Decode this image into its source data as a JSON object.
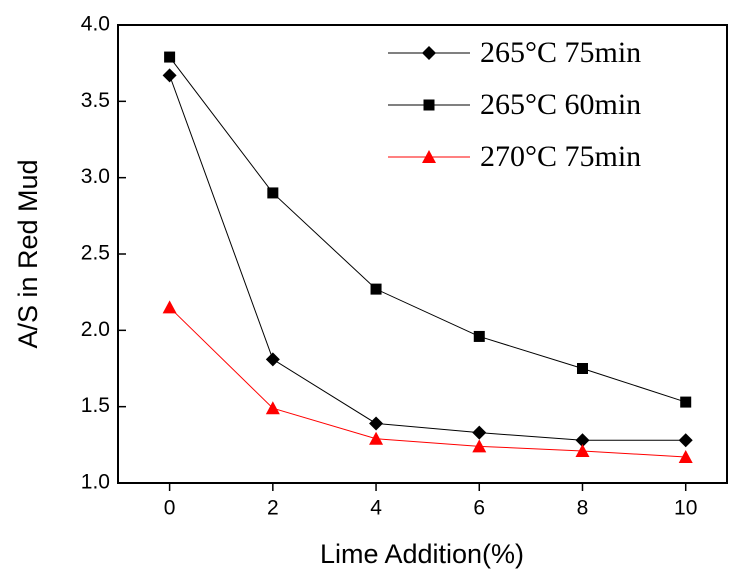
{
  "chart_data": {
    "type": "line",
    "x_label": "Lime Addition(%)",
    "y_label": "A/S in Red Mud",
    "x": [
      0,
      2,
      4,
      6,
      8,
      10
    ],
    "series": [
      {
        "name": "265°C 75min",
        "color": "#000000",
        "marker": "diamond",
        "values": [
          3.67,
          1.81,
          1.39,
          1.33,
          1.28,
          1.28
        ]
      },
      {
        "name": "265°C 60min",
        "color": "#000000",
        "marker": "square",
        "values": [
          3.79,
          2.9,
          2.27,
          1.96,
          1.75,
          1.53
        ]
      },
      {
        "name": "270°C 75min",
        "color": "#ff0000",
        "marker": "triangle",
        "values": [
          2.15,
          1.49,
          1.29,
          1.24,
          1.21,
          1.17
        ]
      }
    ],
    "xlim": [
      -1,
      10.8
    ],
    "ylim": [
      1,
      4
    ],
    "xticks": [
      0,
      2,
      4,
      6,
      8,
      10
    ],
    "yticks": [
      {
        "value": 1,
        "label": "1.0"
      },
      {
        "value": 1.5,
        "label": "1.5"
      },
      {
        "value": 2,
        "label": "2.0"
      },
      {
        "value": 2.5,
        "label": "2.5"
      },
      {
        "value": 3,
        "label": "3.0"
      },
      {
        "value": 3.5,
        "label": "3.5"
      },
      {
        "value": 4,
        "label": "4.0"
      }
    ],
    "legend": "upper right",
    "grid": false
  }
}
